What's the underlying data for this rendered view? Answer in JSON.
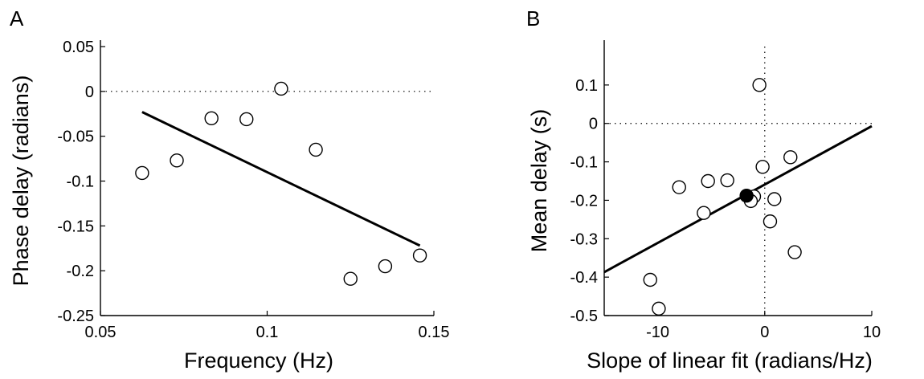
{
  "chart_data": [
    {
      "type": "scatter",
      "panel_label": "A",
      "xlabel": "Frequency (Hz)",
      "ylabel": "Phase delay (radians)",
      "xlim": [
        0.05,
        0.15
      ],
      "ylim": [
        -0.25,
        0.05
      ],
      "xticks": [
        0.05,
        0.1,
        0.15
      ],
      "xtick_labels": [
        "0.05",
        "0.1",
        "0.15"
      ],
      "yticks": [
        0.05,
        0,
        -0.05,
        -0.1,
        -0.15,
        -0.2,
        -0.25
      ],
      "ytick_labels": [
        "0.05",
        "0",
        "-0.05",
        "-0.1",
        "-0.15",
        "-0.2",
        "-0.25"
      ],
      "reference_lines": {
        "y": 0
      },
      "points": [
        {
          "x": 0.0625,
          "y": -0.091
        },
        {
          "x": 0.0729,
          "y": -0.077
        },
        {
          "x": 0.0833,
          "y": -0.03
        },
        {
          "x": 0.0938,
          "y": -0.031
        },
        {
          "x": 0.1042,
          "y": 0.003
        },
        {
          "x": 0.1146,
          "y": -0.065
        },
        {
          "x": 0.125,
          "y": -0.209
        },
        {
          "x": 0.1354,
          "y": -0.195
        },
        {
          "x": 0.1458,
          "y": -0.183
        }
      ],
      "fit_line": [
        [
          0.0625,
          -0.023
        ],
        [
          0.1458,
          -0.172
        ]
      ]
    },
    {
      "type": "scatter",
      "panel_label": "B",
      "xlabel": "Slope of linear fit (radians/Hz)",
      "ylabel": "Mean delay (s)",
      "xlim": [
        -15,
        10
      ],
      "ylim": [
        -0.5,
        0.2
      ],
      "xticks": [
        -10,
        0,
        10
      ],
      "xtick_labels": [
        "-10",
        "0",
        "10"
      ],
      "yticks": [
        0.1,
        0,
        -0.1,
        -0.2,
        -0.3,
        -0.4,
        -0.5
      ],
      "ytick_labels": [
        "0.1",
        "0",
        "-0.1",
        "-0.2",
        "-0.3",
        "-0.4",
        "-0.5"
      ],
      "reference_lines": {
        "x": 0,
        "y": 0
      },
      "points": [
        {
          "x": -0.5,
          "y": 0.1
        },
        {
          "x": 2.4,
          "y": -0.088
        },
        {
          "x": -0.2,
          "y": -0.113
        },
        {
          "x": -3.5,
          "y": -0.148
        },
        {
          "x": -5.3,
          "y": -0.15
        },
        {
          "x": -8.0,
          "y": -0.166
        },
        {
          "x": -1.0,
          "y": -0.19
        },
        {
          "x": 0.9,
          "y": -0.197
        },
        {
          "x": -1.3,
          "y": -0.202
        },
        {
          "x": -5.7,
          "y": -0.233
        },
        {
          "x": 0.5,
          "y": -0.255
        },
        {
          "x": 2.8,
          "y": -0.335
        },
        {
          "x": -10.7,
          "y": -0.407
        },
        {
          "x": -9.9,
          "y": -0.482
        }
      ],
      "highlight_point": {
        "x": -1.7,
        "y": -0.188
      },
      "fit_line": [
        [
          -15,
          -0.387
        ],
        [
          10,
          -0.007
        ]
      ]
    }
  ]
}
